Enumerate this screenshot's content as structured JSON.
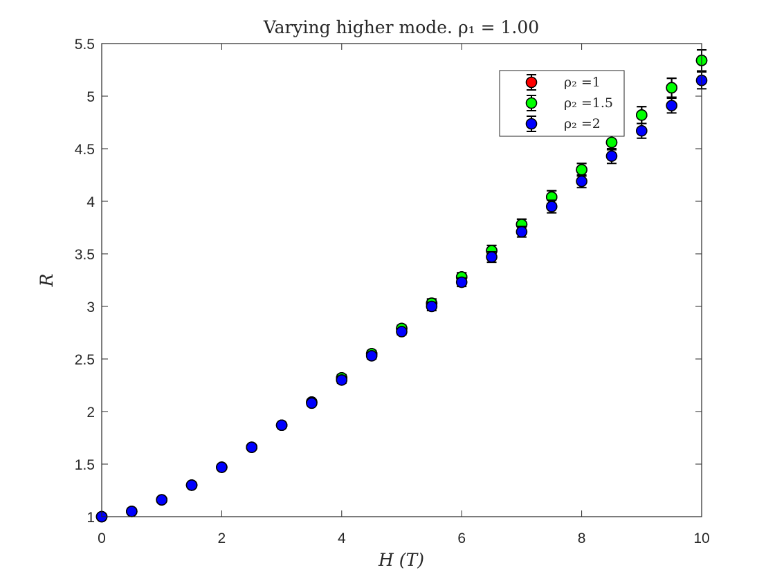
{
  "chart_data": {
    "type": "scatter",
    "title": "Varying higher mode. ρ₁ = 1.00",
    "xlabel": "H (T)",
    "ylabel": "R",
    "xlim": [
      0,
      10
    ],
    "ylim": [
      1,
      5.5
    ],
    "xticks": [
      0,
      2,
      4,
      6,
      8,
      10
    ],
    "yticks": [
      1,
      1.5,
      2,
      2.5,
      3,
      3.5,
      4,
      4.5,
      5,
      5.5
    ],
    "grid": false,
    "legend_position": "top-right",
    "x": [
      0,
      0.5,
      1,
      1.5,
      2,
      2.5,
      3,
      3.5,
      4,
      4.5,
      5,
      5.5,
      6,
      6.5,
      7,
      7.5,
      8,
      8.5,
      9,
      9.5,
      10
    ],
    "series": [
      {
        "name": "ρ₂ =1",
        "color": "#ff0000",
        "values": [
          1.0,
          1.05,
          1.16,
          1.3,
          1.47,
          1.66,
          1.87,
          2.09,
          2.32,
          2.55,
          2.79,
          3.03,
          3.28,
          3.53,
          3.78,
          4.04,
          4.3,
          4.56,
          4.82,
          5.08,
          5.34
        ],
        "err": [
          0.01,
          0.01,
          0.01,
          0.02,
          0.02,
          0.02,
          0.02,
          0.02,
          0.03,
          0.03,
          0.03,
          0.04,
          0.04,
          0.05,
          0.05,
          0.06,
          0.06,
          0.07,
          0.08,
          0.09,
          0.1
        ]
      },
      {
        "name": "ρ₂ =1.5",
        "color": "#00ff00",
        "values": [
          1.0,
          1.05,
          1.16,
          1.3,
          1.47,
          1.66,
          1.87,
          2.09,
          2.32,
          2.55,
          2.79,
          3.03,
          3.28,
          3.53,
          3.78,
          4.04,
          4.3,
          4.56,
          4.82,
          5.08,
          5.34
        ],
        "err": [
          0.01,
          0.01,
          0.01,
          0.02,
          0.02,
          0.02,
          0.02,
          0.02,
          0.03,
          0.03,
          0.03,
          0.04,
          0.04,
          0.05,
          0.05,
          0.06,
          0.06,
          0.07,
          0.08,
          0.09,
          0.1
        ]
      },
      {
        "name": "ρ₂ =2",
        "color": "#0000ff",
        "values": [
          1.0,
          1.05,
          1.16,
          1.3,
          1.47,
          1.66,
          1.87,
          2.08,
          2.3,
          2.53,
          2.76,
          3.0,
          3.23,
          3.47,
          3.71,
          3.95,
          4.19,
          4.43,
          4.67,
          4.91,
          5.15
        ],
        "err": [
          0.01,
          0.01,
          0.01,
          0.02,
          0.02,
          0.02,
          0.02,
          0.02,
          0.03,
          0.03,
          0.03,
          0.04,
          0.04,
          0.05,
          0.05,
          0.06,
          0.06,
          0.07,
          0.07,
          0.07,
          0.08
        ]
      }
    ]
  }
}
